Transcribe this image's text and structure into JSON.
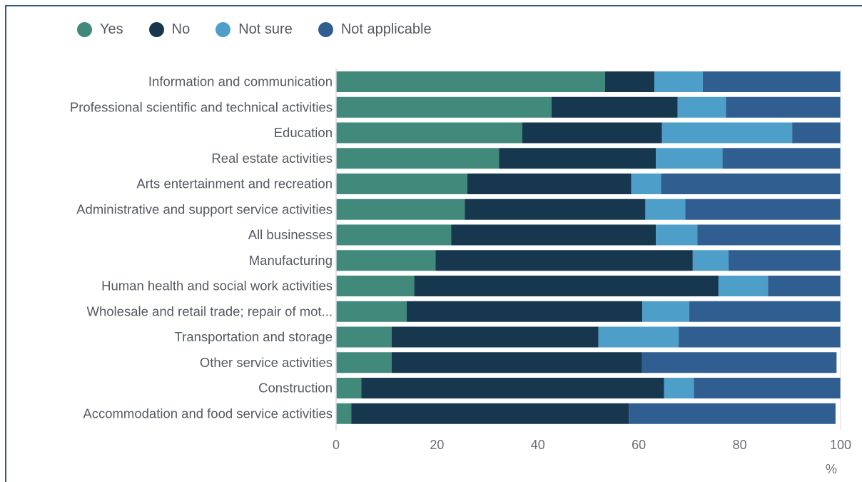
{
  "chart_data": {
    "type": "bar",
    "orientation": "horizontal",
    "stacked": true,
    "categories": [
      "Information and communication",
      "Professional scientific and technical activities",
      "Education",
      "Real estate activities",
      "Arts entertainment and recreation",
      "Administrative and support service activities",
      "All businesses",
      "Manufacturing",
      "Human health and social work activities",
      "Wholesale and retail trade; repair of mot...",
      "Transportation and storage",
      "Other service activities",
      "Construction",
      "Accommodation and food service activities"
    ],
    "series": [
      {
        "name": "Yes",
        "color": "#41897a",
        "values": [
          53.3,
          42.7,
          36.9,
          32.3,
          26.0,
          25.5,
          22.8,
          19.7,
          15.5,
          14.0,
          11.0,
          11.0,
          5.0,
          3.0
        ]
      },
      {
        "name": "No",
        "color": "#17374f",
        "values": [
          9.8,
          25.0,
          27.7,
          31.1,
          32.5,
          35.8,
          40.6,
          51.0,
          60.3,
          46.7,
          41.0,
          49.6,
          60.0,
          55.0
        ]
      },
      {
        "name": "Not sure",
        "color": "#4d9fc9",
        "values": [
          9.6,
          9.6,
          25.8,
          13.2,
          5.9,
          7.9,
          8.2,
          7.1,
          9.8,
          9.3,
          15.9,
          0,
          5.9,
          0
        ]
      },
      {
        "name": "Not applicable",
        "color": "#315e91",
        "values": [
          27.3,
          22.7,
          9.6,
          23.4,
          35.6,
          30.8,
          28.4,
          22.2,
          14.4,
          30.0,
          32.1,
          38.6,
          29.1,
          41.0
        ]
      }
    ],
    "xlim": [
      0,
      100
    ],
    "xticks": [
      "0",
      "20",
      "40",
      "60",
      "80",
      "100"
    ],
    "xlabel": "%",
    "ylabel": "",
    "title": "",
    "legend_position": "top-left",
    "grid": false
  }
}
